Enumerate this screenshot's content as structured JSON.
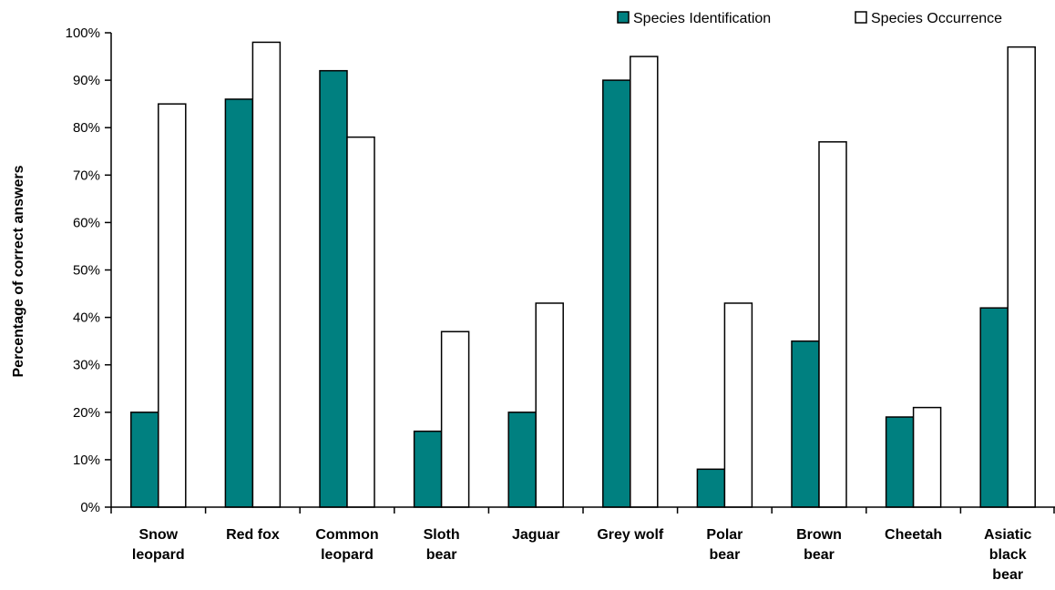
{
  "chart_data": {
    "type": "bar",
    "title": "",
    "xlabel": "",
    "ylabel": "Percentage of correct answers",
    "ylim": [
      0,
      100
    ],
    "yticks": [
      "0%",
      "10%",
      "20%",
      "30%",
      "40%",
      "50%",
      "60%",
      "70%",
      "80%",
      "90%",
      "100%"
    ],
    "grid": false,
    "legend_position": "top-right",
    "categories": [
      [
        "Snow",
        "leopard"
      ],
      [
        "Red fox"
      ],
      [
        "Common",
        "leopard"
      ],
      [
        "Sloth",
        "bear"
      ],
      [
        "Jaguar"
      ],
      [
        "Grey wolf"
      ],
      [
        "Polar",
        "bear"
      ],
      [
        "Brown",
        "bear"
      ],
      [
        "Cheetah"
      ],
      [
        "Asiatic",
        "black",
        "bear"
      ]
    ],
    "series": [
      {
        "name": "Species Identification",
        "color": "#008080",
        "values": [
          20,
          86,
          92,
          16,
          20,
          90,
          8,
          35,
          19,
          42
        ]
      },
      {
        "name": "Species Occurrence",
        "color": "#ffffff",
        "values": [
          85,
          98,
          78,
          37,
          43,
          95,
          43,
          77,
          21,
          97
        ]
      }
    ]
  }
}
